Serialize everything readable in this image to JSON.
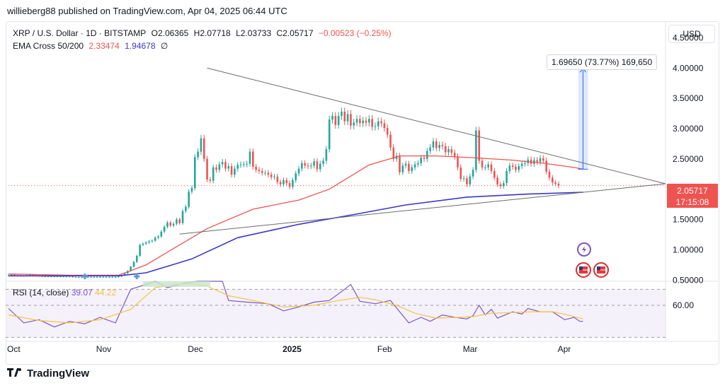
{
  "publisher_line": "willieberg88 published on TradingView.com, Apr 04, 2025 06:44 UTC",
  "brand": "TradingView",
  "legend": {
    "symbol": "XRP / U.S. Dollar · 1D · BITSTAMP",
    "open": "O2.06365",
    "high": "H2.07718",
    "low": "L2.03733",
    "close": "C2.05717",
    "change": "−0.00523 (−0.25%)",
    "ema_label": "EMA Cross 50/200",
    "ema_fast": "2.33474",
    "ema_slow": "1.94678",
    "ema_flag": "∅"
  },
  "rsi_legend": {
    "label": "RSI (14, close)",
    "value": "39.07",
    "ma": "44.22"
  },
  "currency_button": "USD",
  "measure_label": "1.69650 (73.77%) 169,650",
  "last_price": {
    "price": "2.05717",
    "countdown": "17:15:08"
  },
  "colors": {
    "up": "#26a69a",
    "down": "#ef5350",
    "ema50": "#ef5350",
    "ema200": "#3b36c9",
    "rsi": "#7e57c2",
    "rsi_ma": "#f6c343",
    "trendline": "#6b6b6b",
    "rsi_band": "#ede7f6",
    "measure": "#2962ff"
  },
  "chart_data": {
    "type": "candlestick",
    "price_axis": {
      "ticks": [
        0.5,
        1.0,
        1.5,
        2.0,
        2.5,
        3.0,
        3.5,
        4.0,
        4.5
      ],
      "tick_labels": [
        "0.50000",
        "1.00000",
        "1.50000",
        "2.00000",
        "2.50000",
        "3.00000",
        "3.50000",
        "4.00000",
        "4.50000"
      ],
      "range": [
        0.48,
        4.75
      ]
    },
    "rsi_axis": {
      "ticks": [
        60
      ],
      "tick_labels": [
        "60.00"
      ],
      "range": [
        15,
        90
      ]
    },
    "time_axis": {
      "labels": [
        "Oct",
        "Nov",
        "Dec",
        "2025",
        "Feb",
        "Mar",
        "Apr"
      ],
      "bold": [
        false,
        false,
        false,
        true,
        false,
        false,
        false
      ],
      "range_days": [
        0,
        215
      ],
      "label_days": [
        0,
        31,
        61,
        92,
        123,
        151,
        182
      ]
    },
    "series": [
      {
        "name": "XRP / U.S. Dollar",
        "closes": [
          0.58,
          0.59,
          0.58,
          0.58,
          0.57,
          0.57,
          0.58,
          0.59,
          0.58,
          0.57,
          0.57,
          0.56,
          0.56,
          0.56,
          0.56,
          0.56,
          0.56,
          0.56,
          0.56,
          0.56,
          0.56,
          0.55,
          0.55,
          0.55,
          0.55,
          0.55,
          0.55,
          0.55,
          0.55,
          0.55,
          0.55,
          0.55,
          0.55,
          0.55,
          0.55,
          0.55,
          0.56,
          0.58,
          0.61,
          0.65,
          0.72,
          0.8,
          0.9,
          1.08,
          1.1,
          1.12,
          1.14,
          1.15,
          1.2,
          1.22,
          1.3,
          1.38,
          1.45,
          1.4,
          1.43,
          1.5,
          1.44,
          1.64,
          1.71,
          1.96,
          2.02,
          2.53,
          2.62,
          2.84,
          2.5,
          2.16,
          2.14,
          2.36,
          2.32,
          2.41,
          2.45,
          2.34,
          2.38,
          2.24,
          2.34,
          2.4,
          2.41,
          2.41,
          2.42,
          2.62,
          2.37,
          2.32,
          2.3,
          2.27,
          2.27,
          2.24,
          2.2,
          2.21,
          2.12,
          2.08,
          2.15,
          2.1,
          2.04,
          2.15,
          2.26,
          2.34,
          2.43,
          2.39,
          2.38,
          2.39,
          2.46,
          2.33,
          2.42,
          2.47,
          2.66,
          3.15,
          3.21,
          3.06,
          3.21,
          3.28,
          3.12,
          3.24,
          3.05,
          3.1,
          3.16,
          3.09,
          3.13,
          3.1,
          3.16,
          3.03,
          3.04,
          3.12,
          3.09,
          3.01,
          2.9,
          2.69,
          2.5,
          2.55,
          2.28,
          2.39,
          2.42,
          2.3,
          2.36,
          2.41,
          2.43,
          2.52,
          2.5,
          2.63,
          2.69,
          2.79,
          2.68,
          2.73,
          2.71,
          2.61,
          2.66,
          2.6,
          2.54,
          2.36,
          2.17,
          2.18,
          2.08,
          2.21,
          2.32,
          2.97,
          2.47,
          2.36,
          2.36,
          2.41,
          2.3,
          2.19,
          2.08,
          2.05,
          2.1,
          2.3,
          2.39,
          2.37,
          2.32,
          2.38,
          2.42,
          2.43,
          2.49,
          2.42,
          2.48,
          2.45,
          2.51,
          2.47,
          2.29,
          2.19,
          2.11,
          2.09,
          2.06
        ]
      },
      {
        "name": "EMA 50",
        "points": [
          [
            0,
            0.6
          ],
          [
            20,
            0.58
          ],
          [
            36,
            0.58
          ],
          [
            45,
            0.75
          ],
          [
            55,
            1.05
          ],
          [
            65,
            1.35
          ],
          [
            80,
            1.67
          ],
          [
            95,
            1.82
          ],
          [
            105,
            2.0
          ],
          [
            118,
            2.4
          ],
          [
            128,
            2.55
          ],
          [
            140,
            2.55
          ],
          [
            152,
            2.52
          ],
          [
            165,
            2.48
          ],
          [
            175,
            2.43
          ],
          [
            185,
            2.36
          ],
          [
            188,
            2.33
          ]
        ]
      },
      {
        "name": "EMA 200",
        "points": [
          [
            0,
            0.57
          ],
          [
            36,
            0.57
          ],
          [
            45,
            0.62
          ],
          [
            60,
            0.85
          ],
          [
            75,
            1.2
          ],
          [
            95,
            1.42
          ],
          [
            115,
            1.6
          ],
          [
            130,
            1.74
          ],
          [
            150,
            1.87
          ],
          [
            170,
            1.92
          ],
          [
            188,
            1.95
          ]
        ]
      },
      {
        "name": "RSI",
        "points": [
          [
            0,
            56
          ],
          [
            5,
            38
          ],
          [
            10,
            42
          ],
          [
            15,
            33
          ],
          [
            20,
            40
          ],
          [
            25,
            37
          ],
          [
            30,
            45
          ],
          [
            35,
            38
          ],
          [
            40,
            80
          ],
          [
            45,
            86
          ],
          [
            48,
            97
          ],
          [
            52,
            82
          ],
          [
            58,
            88
          ],
          [
            62,
            93
          ],
          [
            64,
            97
          ],
          [
            70,
            94
          ],
          [
            72,
            66
          ],
          [
            78,
            64
          ],
          [
            85,
            62
          ],
          [
            90,
            53
          ],
          [
            95,
            58
          ],
          [
            100,
            64
          ],
          [
            105,
            66
          ],
          [
            110,
            80
          ],
          [
            112,
            86
          ],
          [
            115,
            65
          ],
          [
            120,
            62
          ],
          [
            125,
            66
          ],
          [
            128,
            52
          ],
          [
            131,
            38
          ],
          [
            135,
            45
          ],
          [
            138,
            40
          ],
          [
            142,
            48
          ],
          [
            146,
            45
          ],
          [
            150,
            43
          ],
          [
            152,
            47
          ],
          [
            154,
            60
          ],
          [
            156,
            48
          ],
          [
            158,
            55
          ],
          [
            160,
            44
          ],
          [
            165,
            52
          ],
          [
            168,
            49
          ],
          [
            170,
            56
          ],
          [
            174,
            52
          ],
          [
            178,
            52
          ],
          [
            182,
            42
          ],
          [
            185,
            45
          ],
          [
            187,
            40
          ],
          [
            188,
            40
          ]
        ]
      },
      {
        "name": "RSI MA",
        "points": [
          [
            0,
            48
          ],
          [
            10,
            41
          ],
          [
            20,
            38
          ],
          [
            30,
            42
          ],
          [
            40,
            55
          ],
          [
            48,
            82
          ],
          [
            55,
            86
          ],
          [
            60,
            87
          ],
          [
            65,
            84
          ],
          [
            72,
            72
          ],
          [
            80,
            66
          ],
          [
            90,
            58
          ],
          [
            100,
            60
          ],
          [
            108,
            66
          ],
          [
            115,
            70
          ],
          [
            120,
            67
          ],
          [
            127,
            60
          ],
          [
            133,
            50
          ],
          [
            140,
            44
          ],
          [
            148,
            45
          ],
          [
            152,
            46
          ],
          [
            158,
            50
          ],
          [
            165,
            51
          ],
          [
            172,
            52
          ],
          [
            178,
            52
          ],
          [
            183,
            48
          ],
          [
            188,
            43
          ]
        ]
      }
    ],
    "trendlines": [
      {
        "from": [
          65,
          4.0
        ],
        "to": [
          215,
          2.09
        ]
      },
      {
        "from": [
          56,
          1.26
        ],
        "to": [
          215,
          2.09
        ]
      }
    ],
    "measure": {
      "day": 188,
      "from_price": 2.33,
      "to_price": 4.0
    },
    "markers": {
      "ema_cross_days": [
        25,
        42
      ]
    }
  }
}
